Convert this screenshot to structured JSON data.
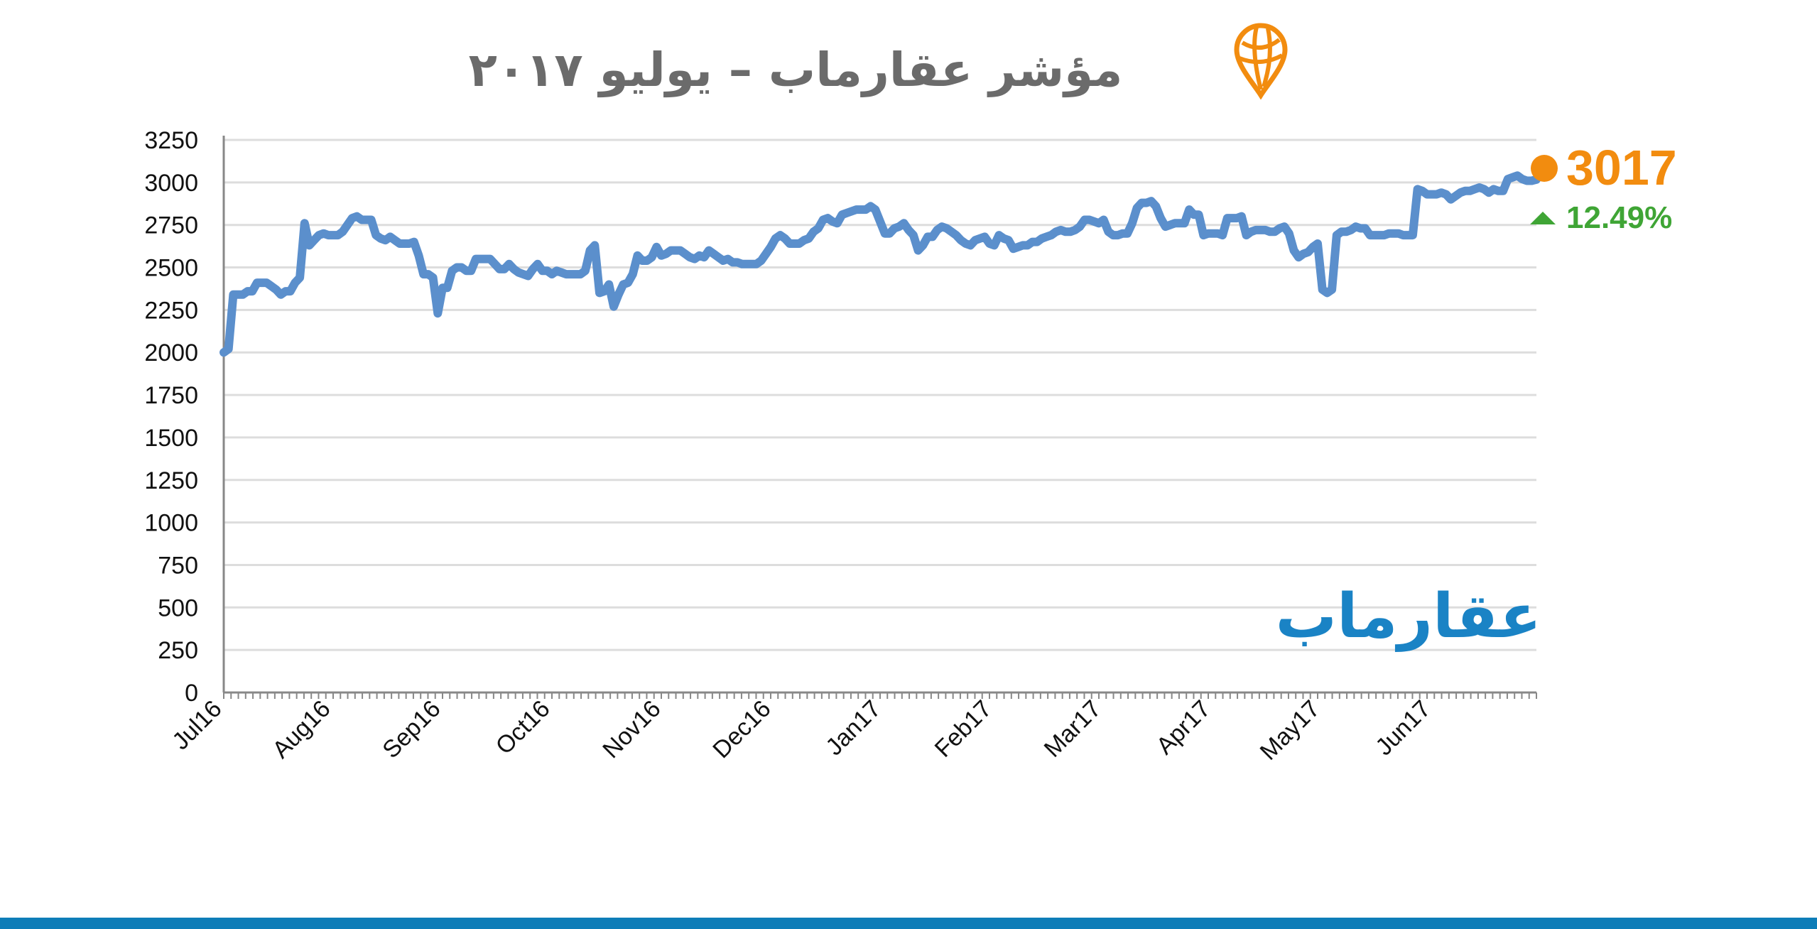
{
  "colors": {
    "line": "#5b8fcc",
    "grid": "#dddddd",
    "axis": "#888888",
    "title": "#6b6b6b",
    "accent_orange": "#f28c0f",
    "positive_green": "#3fa535",
    "brand_blue": "#1a83c5",
    "footer": "#0e7db8"
  },
  "logo": {
    "icon": "map-pin-globe-icon",
    "text": "عقارماب"
  },
  "summary": {
    "current_value": "3017",
    "change": "12.49%",
    "change_icon": "triangle-up-icon"
  },
  "chart_data": {
    "type": "line",
    "title": "مؤشر عقارماب – يوليو ٢٠١٧",
    "xlabel": "",
    "ylabel": "",
    "ylim": [
      0,
      3250
    ],
    "yticks": [
      0,
      250,
      500,
      750,
      1000,
      1250,
      1500,
      1750,
      2000,
      2250,
      2500,
      2750,
      3000,
      3250
    ],
    "grid": true,
    "x_tick_labels": [
      "Jul16",
      "Aug16",
      "Sep16",
      "Oct16",
      "Nov16",
      "Dec16",
      "Jan17",
      "Feb17",
      "Mar17",
      "Apr17",
      "May17",
      "Jun17"
    ],
    "series": [
      {
        "values": [
          2000,
          2020,
          2340,
          2340,
          2340,
          2360,
          2360,
          2410,
          2410,
          2410,
          2390,
          2370,
          2340,
          2360,
          2360,
          2410,
          2440,
          2760,
          2630,
          2660,
          2690,
          2700,
          2690,
          2690,
          2690,
          2710,
          2750,
          2790,
          2800,
          2780,
          2780,
          2780,
          2690,
          2670,
          2660,
          2680,
          2660,
          2640,
          2640,
          2640,
          2650,
          2570,
          2460,
          2460,
          2440,
          2230,
          2380,
          2380,
          2480,
          2500,
          2500,
          2480,
          2480,
          2550,
          2550,
          2550,
          2550,
          2520,
          2490,
          2490,
          2520,
          2490,
          2470,
          2460,
          2450,
          2490,
          2520,
          2480,
          2480,
          2460,
          2480,
          2470,
          2460,
          2460,
          2460,
          2460,
          2480,
          2600,
          2630,
          2350,
          2360,
          2400,
          2270,
          2340,
          2400,
          2410,
          2460,
          2570,
          2540,
          2540,
          2560,
          2620,
          2570,
          2580,
          2600,
          2600,
          2600,
          2580,
          2560,
          2550,
          2570,
          2560,
          2600,
          2580,
          2560,
          2540,
          2550,
          2530,
          2530,
          2520,
          2520,
          2520,
          2520,
          2540,
          2580,
          2620,
          2670,
          2690,
          2670,
          2640,
          2640,
          2640,
          2660,
          2670,
          2710,
          2730,
          2780,
          2790,
          2770,
          2760,
          2810,
          2820,
          2830,
          2840,
          2840,
          2840,
          2860,
          2840,
          2770,
          2700,
          2700,
          2730,
          2740,
          2760,
          2720,
          2690,
          2600,
          2630,
          2680,
          2680,
          2720,
          2740,
          2730,
          2710,
          2690,
          2660,
          2640,
          2630,
          2660,
          2670,
          2680,
          2640,
          2630,
          2690,
          2670,
          2660,
          2610,
          2620,
          2630,
          2630,
          2650,
          2650,
          2670,
          2680,
          2690,
          2710,
          2720,
          2710,
          2710,
          2720,
          2740,
          2780,
          2780,
          2770,
          2760,
          2780,
          2710,
          2690,
          2690,
          2700,
          2700,
          2760,
          2850,
          2880,
          2880,
          2890,
          2860,
          2790,
          2740,
          2750,
          2760,
          2760,
          2760,
          2840,
          2810,
          2810,
          2690,
          2700,
          2700,
          2700,
          2690,
          2790,
          2790,
          2790,
          2800,
          2690,
          2710,
          2720,
          2720,
          2720,
          2710,
          2710,
          2730,
          2740,
          2700,
          2600,
          2560,
          2580,
          2590,
          2620,
          2640,
          2370,
          2350,
          2370,
          2690,
          2710,
          2710,
          2720,
          2740,
          2730,
          2730,
          2690,
          2690,
          2690,
          2690,
          2700,
          2700,
          2700,
          2690,
          2690,
          2690,
          2960,
          2950,
          2930,
          2930,
          2930,
          2940,
          2930,
          2900,
          2920,
          2940,
          2950,
          2950,
          2960,
          2970,
          2960,
          2940,
          2960,
          2950,
          2950,
          3020,
          3030,
          3040,
          3020,
          3010,
          3010,
          3017
        ]
      }
    ]
  }
}
